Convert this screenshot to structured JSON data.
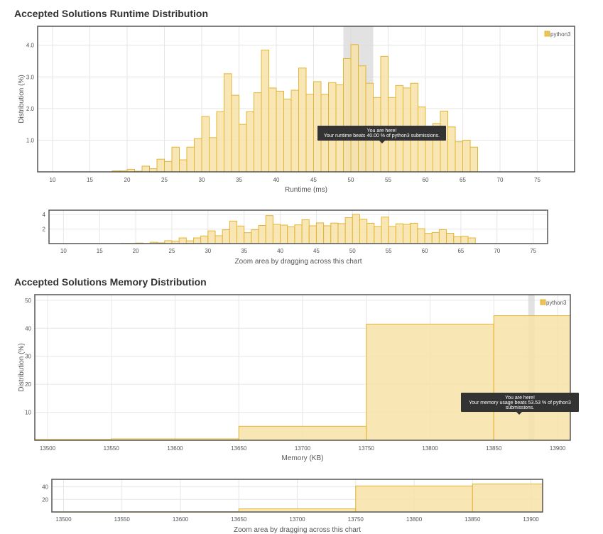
{
  "runtime": {
    "title": "Accepted Solutions Runtime Distribution",
    "zoom_caption": "Zoom area by dragging across this chart",
    "tooltip": {
      "line1": "You are here!",
      "line2": "Your runtime beats 40.00 % of python3 submissions."
    }
  },
  "memory": {
    "title": "Accepted Solutions Memory Distribution",
    "zoom_caption": "Zoom area by dragging across this chart",
    "tooltip": {
      "line1": "You are here!",
      "line2": "Your memory usage beats 53.53 % of python3",
      "line3": "submissions."
    }
  },
  "colors": {
    "bar_fill": "#f7e2a7",
    "bar_stroke": "#e3b534",
    "highlight_band": "#d8d8d8",
    "tooltip_bg": "#333333",
    "grid": "#e6e6e6",
    "frame": "#555555"
  },
  "chart_data": [
    {
      "id": "runtime_main",
      "type": "bar",
      "xlabel": "Runtime (ms)",
      "ylabel": "Distribution (%)",
      "xlim": [
        8,
        80
      ],
      "ylim": [
        0,
        4.6
      ],
      "xticks": [
        10,
        15,
        20,
        25,
        30,
        35,
        40,
        45,
        50,
        55,
        60,
        65,
        70,
        75
      ],
      "yticks": [
        1.0,
        2.0,
        3.0,
        4.0
      ],
      "ytick_labels": [
        "1.0",
        "2.0",
        "3.0",
        "4.0"
      ],
      "bin_width": 1,
      "highlight_range": [
        49,
        53
      ],
      "legend": "top-right",
      "series": [
        {
          "name": "python3",
          "x": [
            18,
            19,
            20,
            21,
            22,
            23,
            24,
            25,
            26,
            27,
            28,
            29,
            30,
            31,
            32,
            33,
            34,
            35,
            36,
            37,
            38,
            39,
            40,
            41,
            42,
            43,
            44,
            45,
            46,
            47,
            48,
            49,
            50,
            51,
            52,
            53,
            54,
            55,
            56,
            57,
            58,
            59,
            60,
            61,
            62,
            63,
            64,
            65,
            66
          ],
          "values": [
            0.03,
            0.03,
            0.08,
            0.02,
            0.18,
            0.1,
            0.4,
            0.33,
            0.78,
            0.38,
            0.78,
            1.05,
            1.75,
            1.08,
            1.9,
            3.1,
            2.42,
            1.5,
            1.9,
            2.5,
            3.85,
            2.65,
            2.55,
            2.3,
            2.58,
            3.28,
            2.45,
            2.85,
            2.45,
            2.82,
            2.75,
            3.58,
            4.02,
            3.35,
            2.8,
            2.35,
            3.65,
            2.35,
            2.73,
            2.65,
            2.8,
            2.05,
            1.4,
            1.53,
            1.92,
            1.42,
            0.95,
            1.0,
            0.78
          ]
        }
      ]
    },
    {
      "id": "runtime_zoom",
      "type": "bar",
      "xlim": [
        8,
        77
      ],
      "ylim": [
        0,
        4.6
      ],
      "xticks": [
        10,
        15,
        20,
        25,
        30,
        35,
        40,
        45,
        50,
        55,
        60,
        65,
        70,
        75
      ],
      "yticks": [
        2,
        4
      ],
      "ytick_labels": [
        "2",
        "4"
      ],
      "bin_width": 1,
      "series": [
        {
          "ref": "runtime_main"
        }
      ]
    },
    {
      "id": "memory_main",
      "type": "bar",
      "xlabel": "Memory (KB)",
      "ylabel": "Distribution (%)",
      "xlim": [
        13490,
        13910
      ],
      "ylim": [
        0,
        52
      ],
      "xticks": [
        13500,
        13550,
        13600,
        13650,
        13700,
        13750,
        13800,
        13850,
        13900
      ],
      "yticks": [
        10,
        20,
        30,
        40,
        50
      ],
      "ytick_labels": [
        "10",
        "20",
        "30",
        "40",
        "50"
      ],
      "highlight_range": [
        13877,
        13882
      ],
      "legend": "top-right",
      "series": [
        {
          "name": "python3",
          "bins": [
            [
              13490,
              13550
            ],
            [
              13550,
              13650
            ],
            [
              13650,
              13750
            ],
            [
              13750,
              13850
            ],
            [
              13850,
              13910
            ]
          ],
          "values": [
            0.3,
            0.5,
            5.0,
            41.5,
            44.5
          ]
        }
      ]
    },
    {
      "id": "memory_zoom",
      "type": "bar",
      "xlim": [
        13490,
        13910
      ],
      "ylim": [
        0,
        52
      ],
      "xticks": [
        13500,
        13550,
        13600,
        13650,
        13700,
        13750,
        13800,
        13850,
        13900
      ],
      "yticks": [
        20,
        40
      ],
      "ytick_labels": [
        "20",
        "40"
      ],
      "series": [
        {
          "ref": "memory_main"
        }
      ]
    }
  ]
}
